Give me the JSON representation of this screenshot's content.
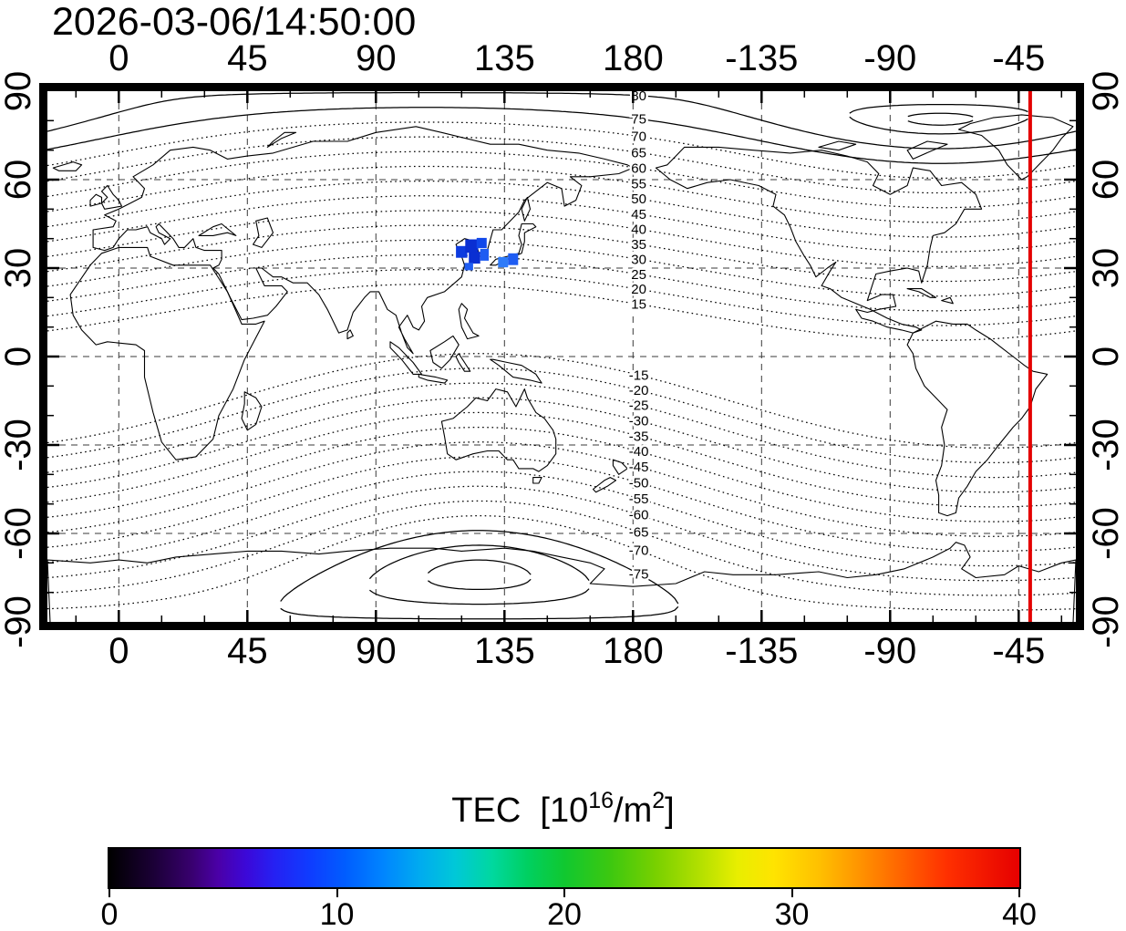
{
  "header": {
    "timestamp": "2026-03-06/14:50:00"
  },
  "colorbar_title": {
    "pre": "TEC  [10",
    "sup1": "16",
    "mid": "/m",
    "sup2": "2",
    "post": "]"
  },
  "chart_data": {
    "type": "heatmap",
    "title": "TEC [10^16/m^2]",
    "timestamp": "2026-03-06/14:50:00",
    "projection": "equirectangular world map",
    "lon_range": [
      -25,
      335
    ],
    "lat_range": [
      -90,
      90
    ],
    "lon_ticks": [
      {
        "lon": 0,
        "label": "0"
      },
      {
        "lon": 45,
        "label": "45"
      },
      {
        "lon": 90,
        "label": "90"
      },
      {
        "lon": 135,
        "label": "135"
      },
      {
        "lon": 180,
        "label": "180"
      },
      {
        "lon": 225,
        "label": "-135"
      },
      {
        "lon": 270,
        "label": "-90"
      },
      {
        "lon": 315,
        "label": "-45"
      }
    ],
    "lat_ticks": [
      {
        "lat": 90,
        "label": "90"
      },
      {
        "lat": 60,
        "label": "60"
      },
      {
        "lat": 30,
        "label": "30"
      },
      {
        "lat": 0,
        "label": "0"
      },
      {
        "lat": -30,
        "label": "-30"
      },
      {
        "lat": -60,
        "label": "-60"
      },
      {
        "lat": -90,
        "label": "-90"
      }
    ],
    "grid": {
      "lon_lines": [
        0,
        45,
        90,
        135,
        180,
        225,
        270,
        315
      ],
      "lat_lines": [
        -60,
        -30,
        0,
        30,
        60
      ]
    },
    "contours": {
      "description": "geomagnetic latitude contours (degrees), dotted; high-latitude ovals solid",
      "levels": [
        15,
        20,
        25,
        30,
        35,
        40,
        45,
        50,
        55,
        60,
        65,
        70,
        75,
        80,
        85,
        88,
        -15,
        -20,
        -25,
        -30,
        -35,
        -40,
        -45,
        -50,
        -55,
        -60,
        -65,
        -70,
        -75,
        -80,
        -85
      ],
      "label_levels": [
        80,
        75,
        70,
        65,
        60,
        55,
        50,
        45,
        40,
        35,
        30,
        25,
        20,
        15,
        -15,
        -20,
        -25,
        -30,
        -35,
        -40,
        -45,
        -50,
        -55,
        -60,
        -65,
        -70,
        -75
      ],
      "label_lon": 182,
      "solid_min_abs": 75,
      "models": {
        "north": {
          "pole_lat": 80.5,
          "pole_lon": 287.4
        },
        "south": {
          "pole_lat": 74.0,
          "pole_lon": 306.0
        }
      }
    },
    "tec_cells": [
      {
        "lon": 120.0,
        "lat": 35.5,
        "dlon": 4.0,
        "dlat": 4.0,
        "color": "#0d3bdf",
        "tec": 8
      },
      {
        "lon": 123.5,
        "lat": 37.5,
        "dlon": 4.5,
        "dlat": 4.5,
        "color": "#0a2fd2",
        "tec": 7
      },
      {
        "lon": 127.0,
        "lat": 38.5,
        "dlon": 3.5,
        "dlat": 3.5,
        "color": "#1148ea",
        "tec": 8
      },
      {
        "lon": 124.5,
        "lat": 33.5,
        "dlon": 4.0,
        "dlat": 4.0,
        "color": "#0a2fd2",
        "tec": 7
      },
      {
        "lon": 128.0,
        "lat": 34.5,
        "dlon": 3.0,
        "dlat": 4.0,
        "color": "#1e5cf2",
        "tec": 9
      },
      {
        "lon": 122.5,
        "lat": 30.5,
        "dlon": 3.0,
        "dlat": 2.5,
        "color": "#1e5cf2",
        "tec": 9
      },
      {
        "lon": 134.5,
        "lat": 32.0,
        "dlon": 3.5,
        "dlat": 3.5,
        "color": "#2f7bf8",
        "tec": 10
      },
      {
        "lon": 138.0,
        "lat": 33.0,
        "dlon": 3.5,
        "dlat": 4.0,
        "color": "#1e5cf2",
        "tec": 9
      }
    ],
    "red_line_lon": -41,
    "red_line_color": "#e40000",
    "colorbar": {
      "min": 0,
      "max": 40,
      "ticks": [
        0,
        10,
        20,
        30,
        40
      ],
      "label": "TEC [10^16/m^2]",
      "stops": [
        [
          0.0,
          "#000000"
        ],
        [
          0.05,
          "#1c0038"
        ],
        [
          0.09,
          "#38006e"
        ],
        [
          0.12,
          "#4b00a8"
        ],
        [
          0.15,
          "#3c08d8"
        ],
        [
          0.18,
          "#2620f2"
        ],
        [
          0.22,
          "#0f3cff"
        ],
        [
          0.26,
          "#005eff"
        ],
        [
          0.3,
          "#0084ff"
        ],
        [
          0.34,
          "#00aaf0"
        ],
        [
          0.38,
          "#00c8d8"
        ],
        [
          0.42,
          "#00d8a0"
        ],
        [
          0.46,
          "#00d060"
        ],
        [
          0.5,
          "#10c830"
        ],
        [
          0.55,
          "#3cc810"
        ],
        [
          0.6,
          "#78d000"
        ],
        [
          0.65,
          "#b4e000"
        ],
        [
          0.69,
          "#e8ee00"
        ],
        [
          0.73,
          "#ffe400"
        ],
        [
          0.78,
          "#ffc000"
        ],
        [
          0.82,
          "#ff9800"
        ],
        [
          0.87,
          "#ff6400"
        ],
        [
          0.92,
          "#ff3000"
        ],
        [
          1.0,
          "#e60000"
        ]
      ]
    }
  }
}
